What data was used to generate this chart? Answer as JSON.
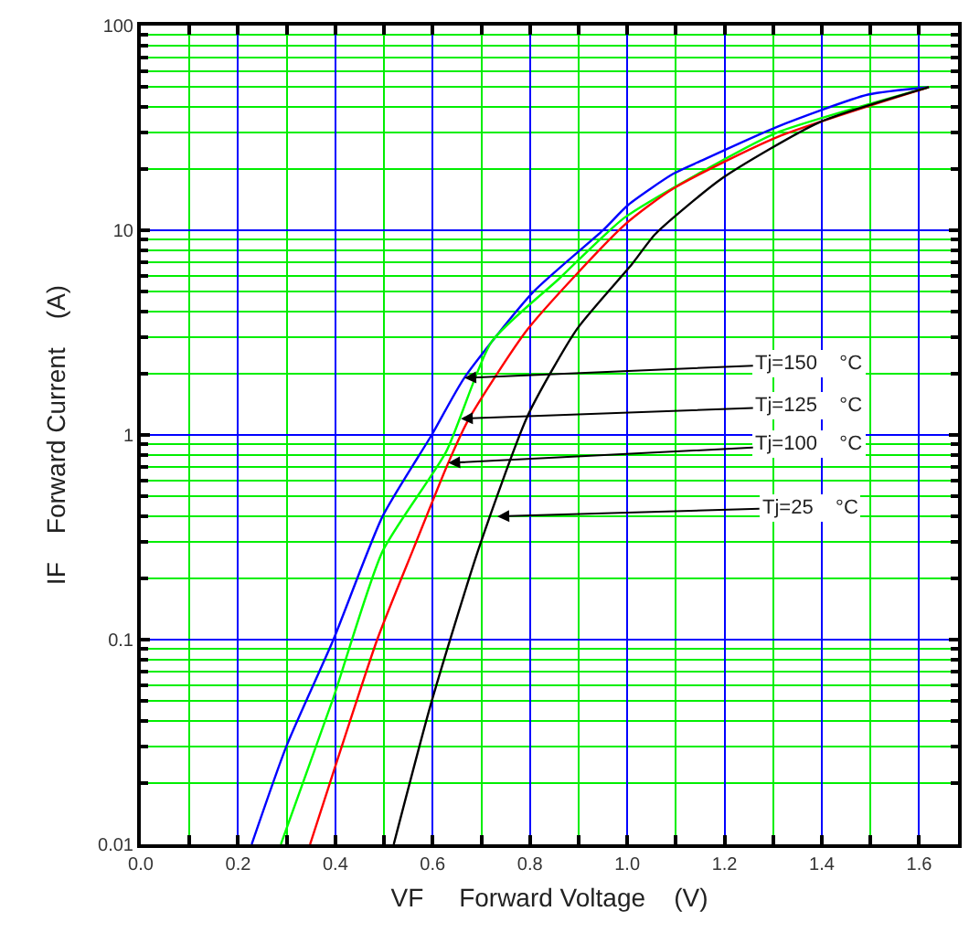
{
  "chart_data": {
    "type": "line",
    "xlabel": "VF     Forward Voltage    (V)",
    "ylabel": "IF    Forward Current    (A)",
    "log": "y",
    "grid": true,
    "marker": "none",
    "line_style": "solid",
    "xlim": [
      0,
      1.68
    ],
    "ylim": [
      0.01,
      100
    ],
    "xticks": [
      "0.0",
      {
        "value": 0.1,
        "label": null
      },
      {
        "value": 0.2,
        "label": "0.2"
      },
      {
        "value": 0.3,
        "label": null
      },
      {
        "value": 0.4,
        "label": "0.4"
      },
      {
        "value": 0.5,
        "label": null
      },
      {
        "value": 0.6,
        "label": "0.6"
      },
      {
        "value": 0.7,
        "label": null
      },
      {
        "value": 0.8,
        "label": "0.8"
      },
      {
        "value": 0.9,
        "label": null
      },
      {
        "value": 1.0,
        "label": "1.0"
      },
      {
        "value": 1.1,
        "label": null
      },
      {
        "value": 1.2,
        "label": "1.2"
      },
      {
        "value": 1.3,
        "label": null
      },
      {
        "value": 1.4,
        "label": "1.4"
      },
      {
        "value": 1.5,
        "label": null
      },
      {
        "value": 1.6,
        "label": "1.6"
      }
    ],
    "yticks": [
      0.01,
      0.1,
      1,
      10,
      100,
      {
        "value": 0.02,
        "label": null
      },
      {
        "value": 0.03,
        "label": null
      },
      {
        "value": 0.04,
        "label": null
      },
      {
        "value": 0.05,
        "label": null
      },
      {
        "value": 0.06,
        "label": null
      },
      {
        "value": 0.07,
        "label": null
      },
      {
        "value": 0.08,
        "label": null
      },
      {
        "value": 0.09,
        "label": null
      },
      {
        "value": 0.2,
        "label": null
      },
      {
        "value": 0.3,
        "label": null
      },
      {
        "value": 0.4,
        "label": null
      },
      {
        "value": 0.5,
        "label": null
      },
      {
        "value": 0.6,
        "label": null
      },
      {
        "value": 0.7,
        "label": null
      },
      {
        "value": 0.8,
        "label": null
      },
      {
        "value": 0.9,
        "label": null
      },
      {
        "value": 2,
        "label": null
      },
      {
        "value": 3,
        "label": null
      },
      {
        "value": 4,
        "label": null
      },
      {
        "value": 5,
        "label": null
      },
      {
        "value": 6,
        "label": null
      },
      {
        "value": 7,
        "label": null
      },
      {
        "value": 8,
        "label": null
      },
      {
        "value": 9,
        "label": null
      },
      {
        "value": 20,
        "label": null
      },
      {
        "value": 30,
        "label": null
      },
      {
        "value": 40,
        "label": null
      },
      {
        "value": 50,
        "label": null
      },
      {
        "value": 60,
        "label": null
      },
      {
        "value": 70,
        "label": null
      },
      {
        "value": 80,
        "label": null
      },
      {
        "value": 90,
        "label": null
      }
    ],
    "series": [
      {
        "color": "#0000ff",
        "x": [
          0.228,
          0.299,
          0.396,
          0.497,
          0.598,
          0.665,
          0.807,
          0.95,
          1.002,
          1.095,
          1.151,
          1.308,
          1.495,
          1.62
        ],
        "values": [
          0.01,
          0.03,
          0.1,
          0.4,
          1,
          1.9,
          5,
          10,
          13.3,
          18.9,
          21.8,
          32,
          46,
          50
        ]
      },
      {
        "color": "#00ff00",
        "x": [
          0.288,
          0.396,
          0.497,
          0.628,
          0.721,
          0.86,
          0.994,
          1.181,
          1.308,
          1.62
        ],
        "values": [
          0.01,
          0.052,
          0.27,
          0.83,
          2.85,
          5.8,
          11.5,
          21,
          30,
          50
        ]
      },
      {
        "color": "#ff0000",
        "x": [
          0.348,
          0.389,
          0.486,
          0.561,
          0.632,
          0.673,
          0.796,
          0.994,
          1.095,
          1.308,
          1.62
        ],
        "values": [
          0.01,
          0.02,
          0.1,
          0.28,
          0.73,
          1.18,
          3.3,
          10.6,
          16,
          28.5,
          50
        ]
      },
      {
        "color": "#000000",
        "x": [
          0.52,
          0.598,
          0.695,
          0.796,
          0.897,
          1.009,
          1.058,
          1.196,
          1.394,
          1.62
        ],
        "values": [
          0.01,
          0.05,
          0.28,
          1.25,
          3.3,
          6.8,
          9.6,
          18,
          33.6,
          50
        ]
      }
    ],
    "annotations": [
      {
        "text": "Tj=150    °C",
        "x": 0.665,
        "y": 1.9
      },
      {
        "text": "Tj=125    °C",
        "x": 0.658,
        "y": 1.2
      },
      {
        "text": "Tj=100    °C",
        "x": 0.632,
        "y": 0.73
      },
      {
        "text": "Tj=25    °C",
        "x": 0.733,
        "y": 0.4
      }
    ]
  }
}
